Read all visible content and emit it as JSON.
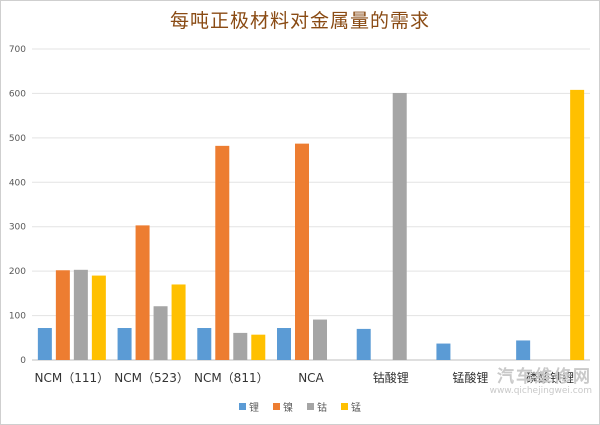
{
  "chart_data": {
    "type": "bar",
    "title": "每吨正极材料对金属量的需求",
    "categories": [
      "NCM（111）",
      "NCM（523）",
      "NCM（811）",
      "NCA",
      "钴酸锂",
      "锰酸锂",
      "磷酸铁锂"
    ],
    "series": [
      {
        "name": "锂",
        "color": "#5b9bd5",
        "values": [
          72,
          72,
          72,
          72,
          70,
          37,
          44
        ]
      },
      {
        "name": "镍",
        "color": "#ed7d31",
        "values": [
          202,
          303,
          482,
          487,
          null,
          null,
          null
        ]
      },
      {
        "name": "钴",
        "color": "#a5a5a5",
        "values": [
          203,
          121,
          61,
          91,
          601,
          null,
          null
        ]
      },
      {
        "name": "锰",
        "color": "#ffc000",
        "values": [
          190,
          170,
          57,
          null,
          null,
          null,
          608
        ]
      }
    ],
    "ylim": [
      0,
      700
    ],
    "yticks": [
      0,
      100,
      200,
      300,
      400,
      500,
      600,
      700
    ],
    "grid": true,
    "legend_position": "bottom"
  },
  "watermark": {
    "main": "汽车维修网",
    "url": "www.qichejingwei.com"
  }
}
